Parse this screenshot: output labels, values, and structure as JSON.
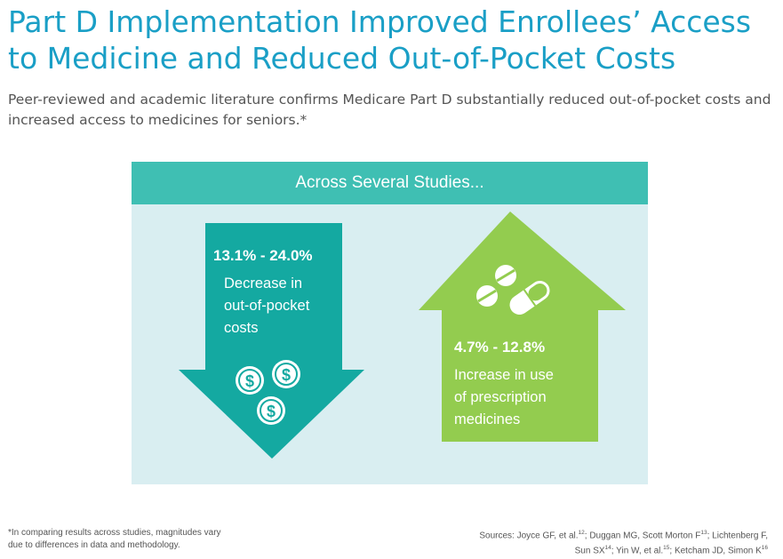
{
  "title": "Part D Implementation Improved Enrollees’ Access to Medicine and Reduced Out-of-Pocket Costs",
  "subtitle": "Peer-reviewed and academic literature confirms Medicare Part D substantially reduced out-of-pocket costs and increased access to medicines for seniors.*",
  "panel": {
    "header": "Across Several Studies...",
    "down": {
      "range": "13.1% - 24.0%",
      "line1": "Decrease in",
      "line2": "out-of-pocket",
      "line3": "costs"
    },
    "up": {
      "range": "4.7% - 12.8%",
      "line1": "Increase in use",
      "line2": "of prescription",
      "line3": "medicines"
    },
    "coin_symbol": "$"
  },
  "footnote": {
    "line1": "*In comparing results across studies, magnitudes vary",
    "line2": "due to differences in data and methodology."
  },
  "sources": {
    "label": "Sources:",
    "s1": "Joyce GF, et al.",
    "s1_ref": "12",
    "s2": "Duggan MG, Scott Morton F",
    "s2_ref": "13",
    "s3": "Lichtenberg F,",
    "s4": "Sun SX",
    "s4_ref": "14",
    "s5": "Yin W, et al.",
    "s5_ref": "15",
    "s6": "Ketcham JD, Simon K",
    "s6_ref": "16"
  },
  "colors": {
    "title": "#1a9fc6",
    "header": "#3fbfb3",
    "panel_bg": "#d9eef1",
    "down_arrow": "#14a9a1",
    "up_arrow": "#93cc4f"
  }
}
